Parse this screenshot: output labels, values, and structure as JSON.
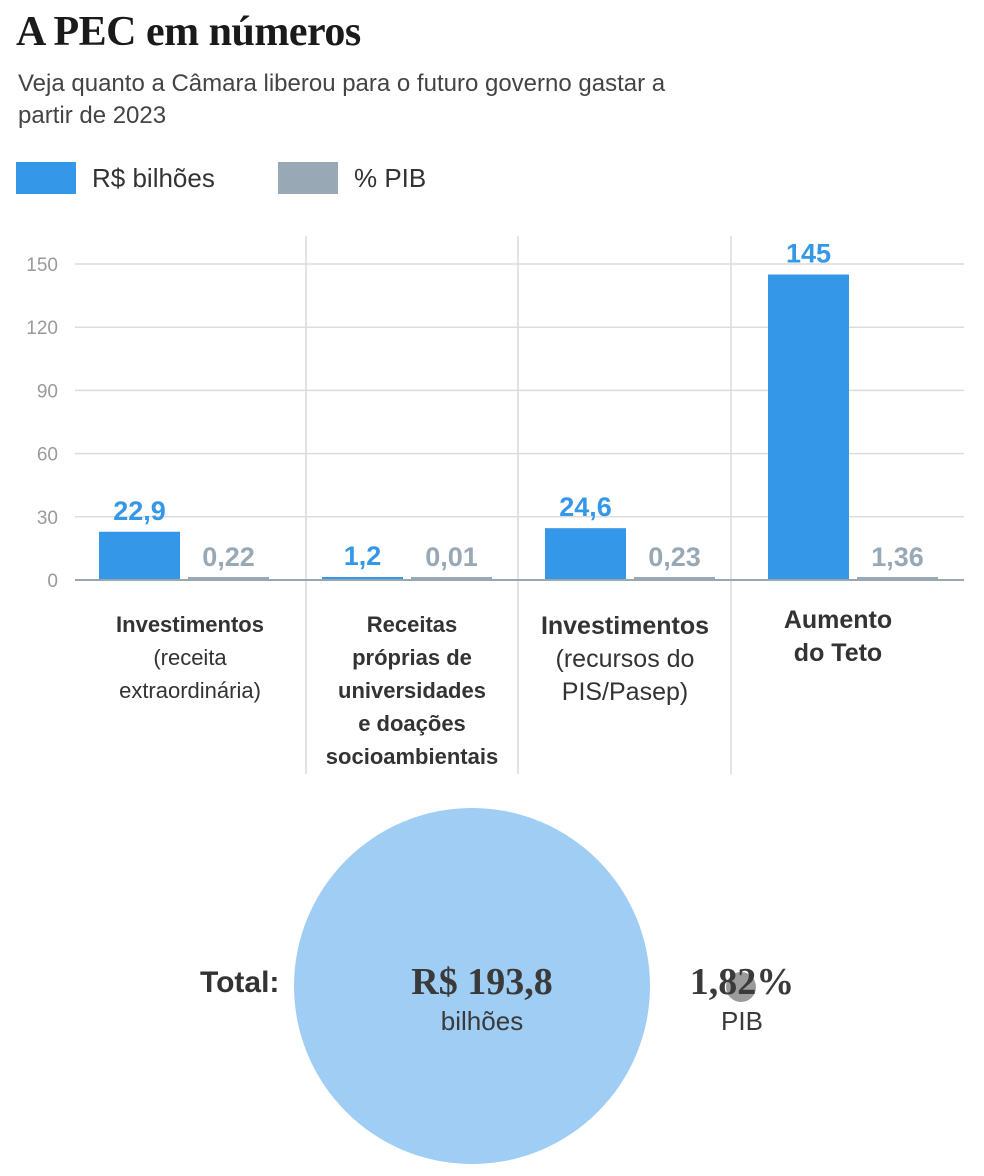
{
  "header": {
    "title": "A PEC em números",
    "subtitle": "Veja quanto a Câmara liberou para o futuro governo gastar a partir de 2023"
  },
  "legend": [
    {
      "label": "R$ bilhões",
      "color": "#3497e8"
    },
    {
      "label": "% PIB",
      "color": "#98a8b4"
    }
  ],
  "chart_data": {
    "type": "bar",
    "ylim": [
      0,
      150
    ],
    "yticks": [
      "0",
      "30",
      "60",
      "90",
      "120",
      "150"
    ],
    "grid": true,
    "legend_position": "top-left",
    "categories": [
      {
        "lines": [
          {
            "text": "Investimentos",
            "bold": true
          },
          {
            "text": "(receita",
            "bold": false
          },
          {
            "text": "extraordinária)",
            "bold": false
          }
        ]
      },
      {
        "lines": [
          {
            "text": "Receitas",
            "bold": true
          },
          {
            "text": "próprias de",
            "bold": true
          },
          {
            "text": "universidades",
            "bold": true
          },
          {
            "text": "e doações",
            "bold": true
          },
          {
            "text": "socioambientais",
            "bold": true
          }
        ]
      },
      {
        "lines": [
          {
            "text": "Investimentos",
            "bold": true
          },
          {
            "text": "(recursos do",
            "bold": false
          },
          {
            "text": "PIS/Pasep)",
            "bold": false
          }
        ]
      },
      {
        "lines": [
          {
            "text": "Aumento",
            "bold": true
          },
          {
            "text": "do Teto",
            "bold": true
          }
        ]
      }
    ],
    "series": [
      {
        "name": "R$ bilhões",
        "color": "#3497e8",
        "values": [
          22.9,
          1.2,
          24.6,
          145
        ],
        "labels": [
          "22,9",
          "1,2",
          "24,6",
          "145"
        ]
      },
      {
        "name": "% PIB",
        "color": "#98a8b4",
        "values": [
          0.22,
          0.01,
          0.23,
          1.36
        ],
        "labels": [
          "0,22",
          "0,01",
          "0,23",
          "1,36"
        ]
      }
    ]
  },
  "total": {
    "label": "Total:",
    "value": "R$ 193,8",
    "unit": "bilhões",
    "pib_value": "1,82%",
    "pib_unit": "PIB"
  }
}
